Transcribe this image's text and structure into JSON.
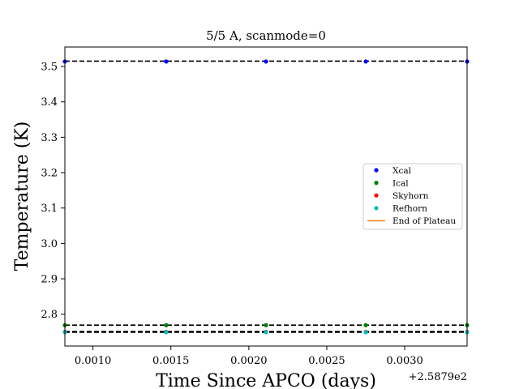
{
  "chart_data": {
    "type": "scatter",
    "title": "5/5 A, scanmode=0",
    "xlabel": "Time Since APCO (days)",
    "ylabel": "Temperature (K)",
    "x_offset_label": "+2.5879e2",
    "xlim": [
      0.00082,
      0.0034
    ],
    "ylim": [
      2.71,
      3.555
    ],
    "x_ticks": [
      0.001,
      0.0015,
      0.002,
      0.0025,
      0.003
    ],
    "x_tick_labels": [
      "0.0010",
      "0.0015",
      "0.0020",
      "0.0025",
      "0.0030"
    ],
    "y_ticks": [
      2.8,
      2.9,
      3.0,
      3.1,
      3.2,
      3.3,
      3.4,
      3.5
    ],
    "y_tick_labels": [
      "2.8",
      "2.9",
      "3.0",
      "3.1",
      "3.2",
      "3.3",
      "3.4",
      "3.5"
    ],
    "x": [
      0.00082,
      0.00147,
      0.00211,
      0.00275,
      0.0034
    ],
    "series": [
      {
        "name": "Xcal",
        "color": "#0000ff",
        "values": [
          3.514,
          3.514,
          3.514,
          3.514,
          3.514
        ]
      },
      {
        "name": "Ical",
        "color": "#008000",
        "values": [
          2.769,
          2.769,
          2.769,
          2.769,
          2.769
        ]
      },
      {
        "name": "Skyhorn",
        "color": "#ff0000",
        "values": [
          2.75,
          2.75,
          2.75,
          2.75,
          2.75
        ]
      },
      {
        "name": "Refhorn",
        "color": "#00bfbf",
        "values": [
          2.749,
          2.749,
          2.749,
          2.749,
          2.749
        ]
      }
    ],
    "reference_lines": [
      3.515,
      2.769,
      2.751,
      2.749
    ],
    "end_of_plateau": {
      "name": "End of Plateau",
      "color": "#ff7f0e"
    },
    "grid": false,
    "legend_position": "center-right"
  }
}
